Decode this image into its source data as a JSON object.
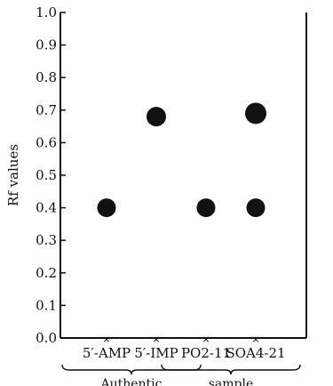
{
  "chart_data": {
    "type": "scatter",
    "ylabel": "Rf values",
    "ylim": [
      0.0,
      1.0
    ],
    "yticks": [
      "0.0",
      "0.1",
      "0.2",
      "0.3",
      "0.4",
      "0.5",
      "0.6",
      "0.7",
      "0.8",
      "0.9",
      "1.0"
    ],
    "categories": [
      "5′-AMP",
      "5′-IMP",
      "PO2-11",
      "SOA4-21"
    ],
    "groups": [
      {
        "label": "Authentic",
        "categories": [
          "5′-AMP",
          "5′-IMP"
        ]
      },
      {
        "label": "sample",
        "categories": [
          "PO2-11",
          "SOA4-21"
        ]
      }
    ],
    "series": [
      {
        "points": [
          {
            "category": "5′-AMP",
            "y": 0.4
          },
          {
            "category": "5′-IMP",
            "y": 0.68
          },
          {
            "category": "PO2-11",
            "y": 0.4
          },
          {
            "category": "SOA4-21",
            "y": 0.69
          },
          {
            "category": "SOA4-21",
            "y": 0.4
          }
        ]
      }
    ],
    "grid": false,
    "marker_color": "#111111"
  }
}
